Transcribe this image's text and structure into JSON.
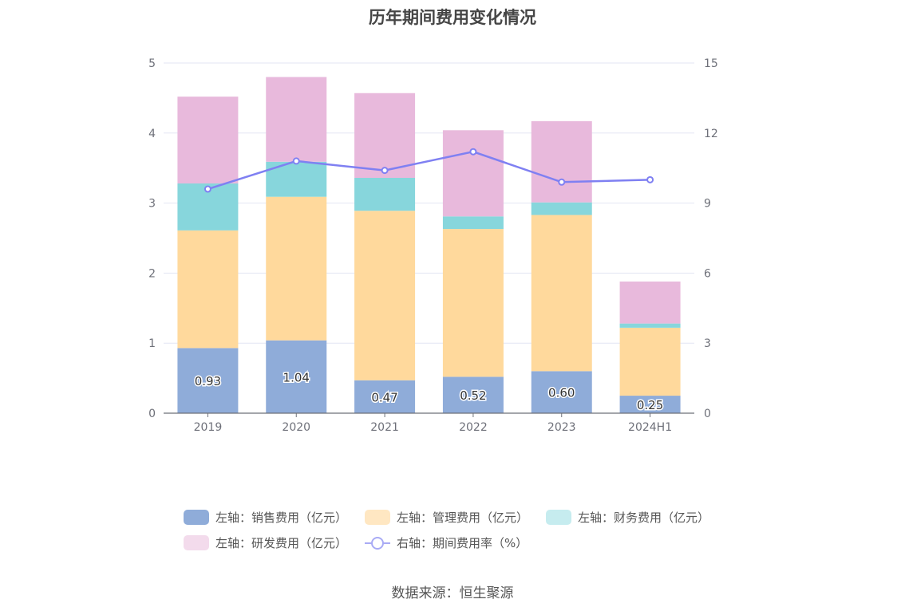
{
  "chart_data": {
    "type": "bar",
    "title": "历年期间费用变化情况",
    "categories": [
      "2019",
      "2020",
      "2021",
      "2022",
      "2023",
      "2024H1"
    ],
    "left_axis": {
      "ylim": [
        0,
        5
      ],
      "ticks": [
        "0",
        "1",
        "2",
        "3",
        "4",
        "5"
      ]
    },
    "right_axis": {
      "ylim": [
        0,
        15
      ],
      "ticks": [
        "0",
        "3",
        "6",
        "9",
        "12",
        "15"
      ]
    },
    "series": [
      {
        "name": "左轴：销售费用（亿元）",
        "color": "#8facd9",
        "values": [
          0.93,
          1.04,
          0.47,
          0.52,
          0.6,
          0.25
        ],
        "labels": [
          "0.93",
          "1.04",
          "0.47",
          "0.52",
          "0.60",
          "0.25"
        ],
        "stack": true
      },
      {
        "name": "左轴：管理费用（亿元）",
        "color": "#ffd99c",
        "values": [
          1.68,
          2.05,
          2.42,
          2.11,
          2.23,
          0.97
        ],
        "stack": true
      },
      {
        "name": "左轴：财务费用（亿元）",
        "color": "#87d6dc",
        "values": [
          0.67,
          0.5,
          0.47,
          0.18,
          0.18,
          0.06
        ],
        "stack": true
      },
      {
        "name": "左轴：研发费用（亿元）",
        "color": "#e8b9dc",
        "values": [
          1.24,
          1.21,
          1.21,
          1.23,
          1.16,
          0.6
        ],
        "stack": true
      },
      {
        "name": "右轴：期间费用率（%）",
        "color": "#7f80f2",
        "type": "line",
        "values": [
          9.6,
          10.8,
          10.4,
          11.2,
          9.9,
          10.0
        ]
      }
    ],
    "grid": true,
    "legend_position": "bottom"
  },
  "legend": [
    {
      "label": "左轴：销售费用（亿元）",
      "color": "#8facd9"
    },
    {
      "label": "左轴：管理费用（亿元）",
      "color": "#ffe7c2"
    },
    {
      "label": "左轴：财务费用（亿元）",
      "color": "#c6ecef"
    },
    {
      "label": "左轴：研发费用（亿元）",
      "color": "#f3dbec"
    },
    {
      "label": "右轴：期间费用率（%）",
      "color": "#a9abf5"
    }
  ],
  "source": "数据来源：恒生聚源"
}
